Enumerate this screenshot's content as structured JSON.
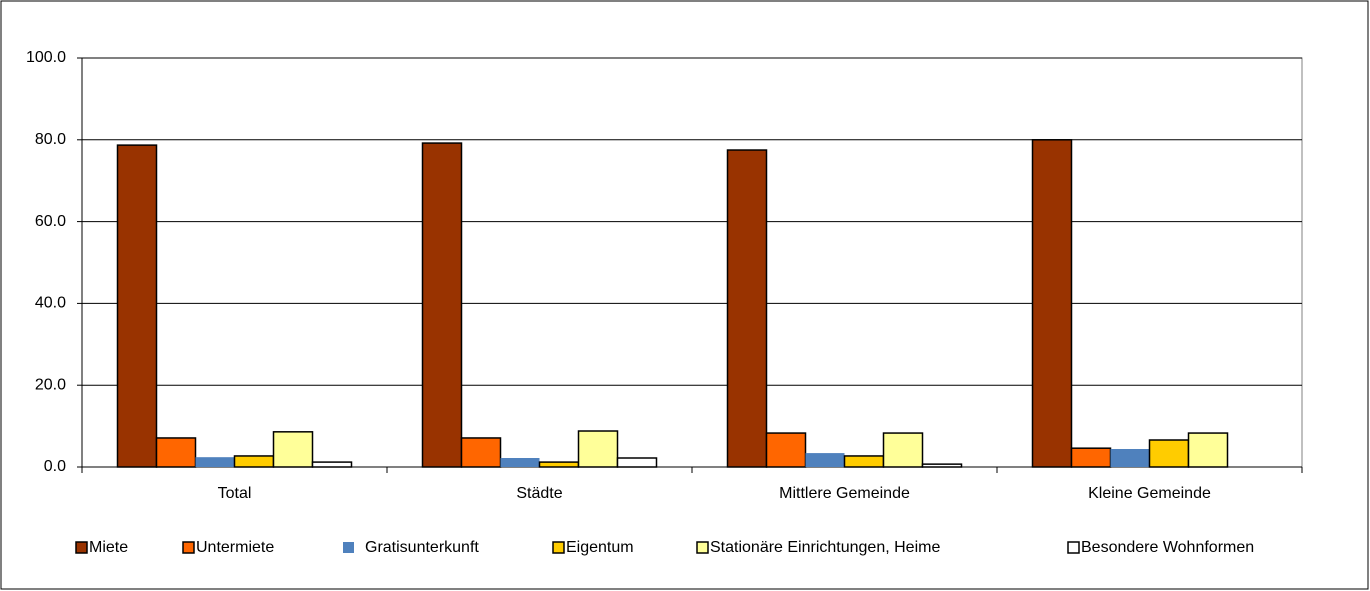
{
  "chart_data": {
    "type": "bar",
    "categories": [
      "Total",
      "Städte",
      "Mittlere Gemeinde",
      "Kleine Gemeinde"
    ],
    "series": [
      {
        "name": "Miete",
        "color": "#993300",
        "values": [
          78.7,
          79.2,
          77.5,
          80.0
        ]
      },
      {
        "name": "Untermiete",
        "color": "#ff6600",
        "values": [
          7.1,
          7.1,
          8.3,
          4.6
        ]
      },
      {
        "name": "Gratisunterkunft",
        "color": "#4f81bd",
        "values": [
          2.4,
          2.2,
          3.4,
          4.4
        ]
      },
      {
        "name": "Eigentum",
        "color": "#ffcc00",
        "values": [
          2.7,
          1.2,
          2.7,
          6.6
        ]
      },
      {
        "name": "Stationäre Einrichtungen, Heime",
        "color": "#ffff99",
        "values": [
          8.6,
          8.8,
          8.3,
          8.3
        ]
      },
      {
        "name": "Besondere Wohnformen",
        "color": "#ffffff",
        "values": [
          1.2,
          2.2,
          0.7,
          0
        ]
      }
    ],
    "ylim": [
      0,
      100
    ],
    "yticks": [
      {
        "value": 0,
        "label": "0.0"
      },
      {
        "value": 20,
        "label": "20.0"
      },
      {
        "value": 40,
        "label": "40.0"
      },
      {
        "value": 60,
        "label": "60.0"
      },
      {
        "value": 80,
        "label": "80.0"
      },
      {
        "value": 100,
        "label": "100.0"
      }
    ],
    "grid": true
  }
}
